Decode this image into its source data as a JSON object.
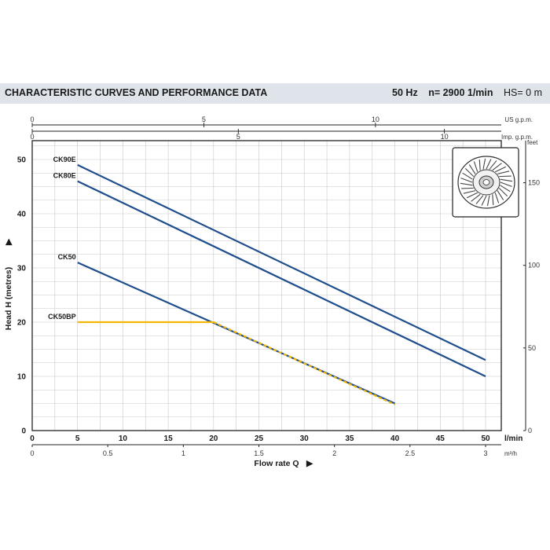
{
  "header": {
    "title": "CHARACTERISTIC CURVES AND PERFORMANCE DATA",
    "frequency": "50 Hz",
    "speed": "n= 2900  1/min",
    "suction": "HS= 0 m"
  },
  "chart_data": {
    "type": "line",
    "title": "CHARACTERISTIC CURVES AND PERFORMANCE DATA",
    "xlabel": "Flow rate Q",
    "ylabel": "Head H (metres)",
    "xlim": [
      0,
      50
    ],
    "ylim": [
      0,
      52
    ],
    "x_unit": "l/min",
    "x_ticks": [
      0,
      5,
      10,
      15,
      20,
      25,
      30,
      35,
      40,
      45,
      50
    ],
    "y_ticks": [
      0,
      10,
      20,
      30,
      40,
      50
    ],
    "grid": true,
    "secondary_axes": [
      {
        "position": "bottom",
        "unit": "m³/h",
        "ticks": [
          0,
          0.5,
          1,
          1.5,
          2,
          2.5,
          3
        ],
        "scale_per_primary": 0.06
      },
      {
        "position": "top",
        "unit": "US g.p.m.",
        "ticks": [
          0,
          5,
          10
        ],
        "scale_per_primary": 0.264172
      },
      {
        "position": "top",
        "unit": "Imp. g.p.m.",
        "ticks": [
          0,
          5,
          10
        ],
        "scale_per_primary": 0.219969
      },
      {
        "position": "right",
        "unit": "feet",
        "ticks": [
          0,
          50,
          100,
          150
        ],
        "scale_per_primary": 3.28084
      }
    ],
    "series": [
      {
        "name": "CK90E",
        "color": "#1f4e8c",
        "style": "solid",
        "points": [
          [
            5,
            49
          ],
          [
            50,
            13
          ]
        ]
      },
      {
        "name": "CK80E",
        "color": "#1f4e8c",
        "style": "solid",
        "points": [
          [
            5,
            46
          ],
          [
            50,
            10
          ]
        ]
      },
      {
        "name": "CK50",
        "color": "#1f4e8c",
        "style": "solid",
        "points": [
          [
            5,
            31
          ],
          [
            40,
            5
          ]
        ]
      },
      {
        "name": "CK50BP",
        "color": "#f2b705",
        "style": "solid-then-dashed",
        "points": [
          [
            5,
            20
          ],
          [
            20,
            20
          ],
          [
            40,
            4.8
          ]
        ]
      }
    ]
  }
}
